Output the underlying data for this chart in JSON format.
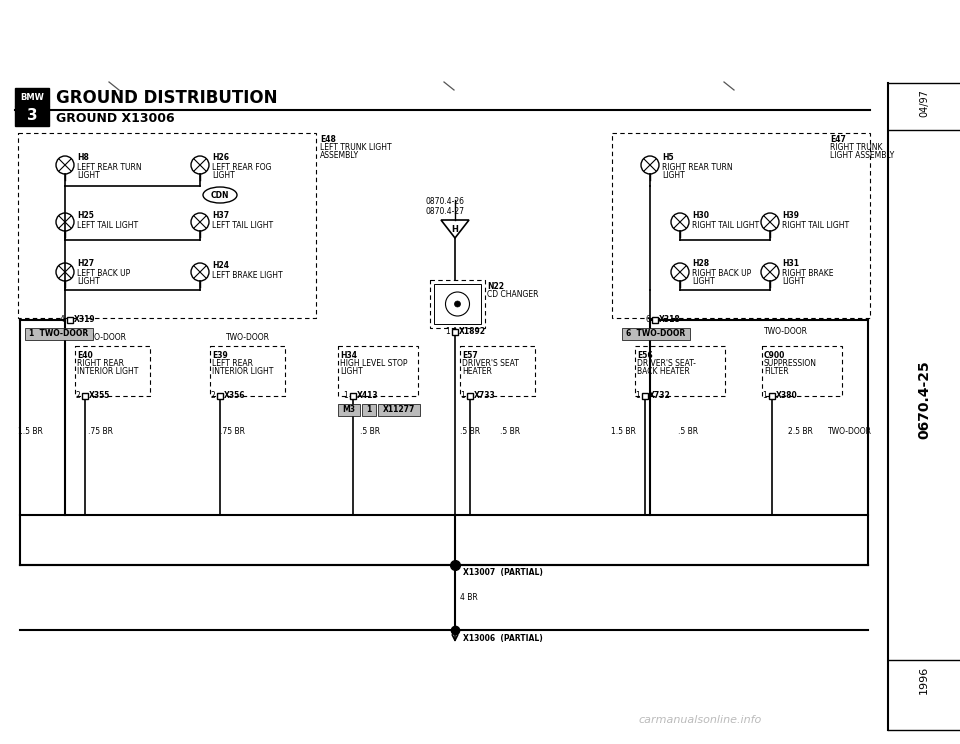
{
  "title1": "GROUND DISTRIBUTION",
  "title2": "GROUND X13006",
  "page_ref_top": "04/97",
  "page_ref_mid": "0670.4-25",
  "page_ref_bot": "1996",
  "bg_color": "#ffffff",
  "lc": "#000000",
  "watermark": "carmanualsonline.info"
}
